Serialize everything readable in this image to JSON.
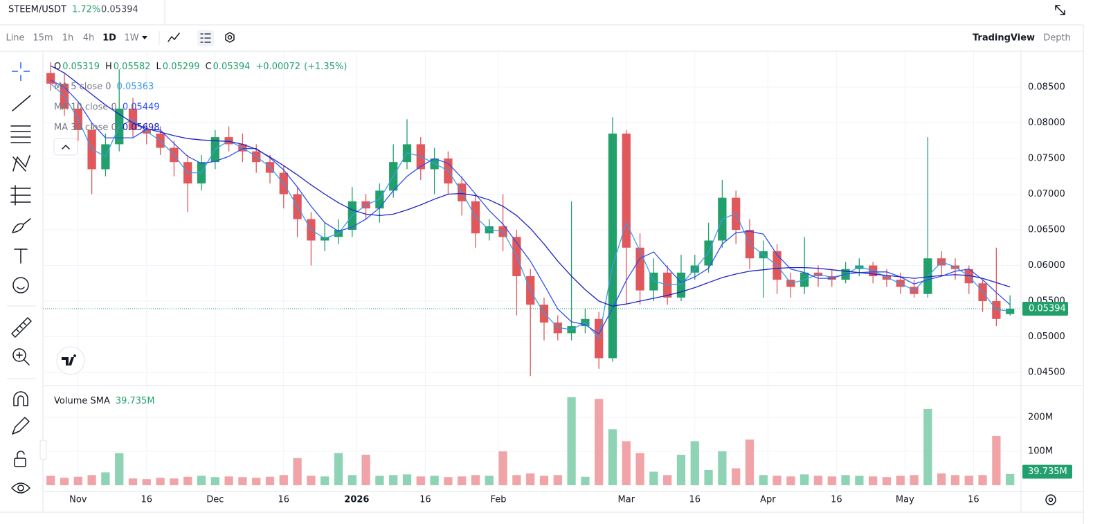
{
  "toolbar": {
    "intervals": [
      "Line",
      "15m",
      "1h",
      "4h",
      "1D",
      "1W"
    ],
    "views": [
      "TradingView",
      "Depth"
    ]
  },
  "chart_data": {
    "type": "candlestick",
    "symbol": "STEEM/USDT",
    "change": "1.72%",
    "legend": {
      "open": "O",
      "high": "H",
      "low": "L",
      "close": "C",
      "change_value": "+0.00072",
      "change_percent": "(+1.35%)"
    },
    "up_color": "#22a06b",
    "down_color": "#e0575c",
    "volume_up_color": "#8fd3b5",
    "volume_down_color": "#f1a4a7",
    "x": [
      -6,
      -3,
      0,
      3,
      6,
      9,
      12,
      15,
      18,
      21,
      24,
      27,
      30,
      33,
      36,
      39,
      42,
      45,
      48,
      51,
      54,
      57,
      60,
      63,
      66,
      69,
      72,
      75,
      78,
      81,
      84,
      87,
      90,
      93,
      96,
      99,
      102,
      105,
      108,
      111,
      114,
      117,
      120,
      123,
      126,
      129,
      132,
      135,
      138,
      141,
      144,
      147,
      150,
      153,
      156,
      159,
      162,
      165,
      168,
      171,
      174,
      177,
      180,
      183,
      186,
      189,
      192,
      195,
      198,
      201,
      204
    ],
    "open": [
      0.087,
      0.0855,
      0.082,
      0.079,
      0.0735,
      0.077,
      0.082,
      0.079,
      0.0785,
      0.0765,
      0.0745,
      0.0715,
      0.0745,
      0.078,
      0.077,
      0.076,
      0.0745,
      0.073,
      0.07,
      0.0665,
      0.0635,
      0.064,
      0.065,
      0.069,
      0.068,
      0.0705,
      0.0745,
      0.077,
      0.0735,
      0.075,
      0.0715,
      0.069,
      0.0645,
      0.0655,
      0.064,
      0.0585,
      0.0545,
      0.052,
      0.0505,
      0.0515,
      0.0525,
      0.047,
      0.0785,
      0.0625,
      0.0565,
      0.059,
      0.0555,
      0.059,
      0.06,
      0.0635,
      0.0695,
      0.065,
      0.061,
      0.062,
      0.058,
      0.057,
      0.059,
      0.0585,
      0.058,
      0.0595,
      0.06,
      0.0585,
      0.058,
      0.057,
      0.056,
      0.061,
      0.06,
      0.0595,
      0.0575,
      0.055,
      0.05319
    ],
    "high": [
      0.0885,
      0.087,
      0.083,
      0.08,
      0.0785,
      0.0875,
      0.0835,
      0.08,
      0.0795,
      0.0775,
      0.0755,
      0.0755,
      0.079,
      0.0795,
      0.0785,
      0.077,
      0.0755,
      0.074,
      0.071,
      0.0675,
      0.066,
      0.0665,
      0.071,
      0.07,
      0.0715,
      0.077,
      0.0805,
      0.078,
      0.0765,
      0.076,
      0.0725,
      0.07,
      0.0665,
      0.07,
      0.065,
      0.0595,
      0.0555,
      0.053,
      0.069,
      0.054,
      0.0535,
      0.0808,
      0.079,
      0.0645,
      0.061,
      0.06,
      0.0615,
      0.0615,
      0.066,
      0.072,
      0.0705,
      0.0665,
      0.0635,
      0.063,
      0.059,
      0.064,
      0.06,
      0.0595,
      0.0605,
      0.061,
      0.0605,
      0.0595,
      0.059,
      0.058,
      0.078,
      0.062,
      0.061,
      0.06,
      0.058,
      0.0625,
      0.05582
    ],
    "low": [
      0.0845,
      0.081,
      0.0775,
      0.07,
      0.0725,
      0.076,
      0.078,
      0.077,
      0.0755,
      0.0725,
      0.0675,
      0.0705,
      0.0735,
      0.076,
      0.0745,
      0.073,
      0.0715,
      0.068,
      0.064,
      0.06,
      0.062,
      0.063,
      0.064,
      0.0665,
      0.066,
      0.0695,
      0.0735,
      0.072,
      0.07,
      0.07,
      0.067,
      0.0625,
      0.0635,
      0.062,
      0.053,
      0.0445,
      0.0495,
      0.0495,
      0.0495,
      0.0505,
      0.0455,
      0.0465,
      0.0545,
      0.0545,
      0.055,
      0.0545,
      0.055,
      0.058,
      0.059,
      0.0625,
      0.063,
      0.0595,
      0.0555,
      0.056,
      0.0555,
      0.056,
      0.057,
      0.057,
      0.0575,
      0.0585,
      0.0575,
      0.057,
      0.056,
      0.0555,
      0.0555,
      0.0585,
      0.058,
      0.056,
      0.0535,
      0.0515,
      0.05299
    ],
    "close": [
      0.0855,
      0.082,
      0.079,
      0.0735,
      0.077,
      0.082,
      0.079,
      0.0785,
      0.0765,
      0.0745,
      0.0715,
      0.0745,
      0.078,
      0.077,
      0.076,
      0.0745,
      0.073,
      0.07,
      0.0665,
      0.0635,
      0.064,
      0.065,
      0.069,
      0.068,
      0.0705,
      0.0745,
      0.077,
      0.0735,
      0.075,
      0.0715,
      0.069,
      0.0645,
      0.0655,
      0.064,
      0.0585,
      0.0545,
      0.052,
      0.0505,
      0.0515,
      0.0525,
      0.047,
      0.0785,
      0.0625,
      0.0565,
      0.059,
      0.0555,
      0.059,
      0.06,
      0.0635,
      0.0695,
      0.065,
      0.061,
      0.062,
      0.058,
      0.057,
      0.059,
      0.0585,
      0.058,
      0.0595,
      0.06,
      0.0585,
      0.058,
      0.057,
      0.056,
      0.061,
      0.06,
      0.0595,
      0.0575,
      0.055,
      0.0525,
      0.05394
    ],
    "volume": [
      28,
      22,
      25,
      30,
      38,
      95,
      20,
      18,
      22,
      20,
      25,
      28,
      24,
      26,
      24,
      22,
      25,
      30,
      80,
      28,
      26,
      95,
      30,
      90,
      28,
      30,
      32,
      26,
      28,
      24,
      26,
      30,
      28,
      100,
      30,
      35,
      28,
      30,
      260,
      25,
      255,
      165,
      130,
      95,
      40,
      30,
      90,
      130,
      45,
      100,
      50,
      135,
      30,
      28,
      26,
      32,
      28,
      26,
      30,
      28,
      26,
      24,
      28,
      30,
      225,
      35,
      30,
      28,
      30,
      145,
      33
    ],
    "series": [
      {
        "name": "MA 5 close 0",
        "color": "#3d9be9",
        "values": [
          0.0855,
          0.0838,
          0.0805,
          0.0763,
          0.0753,
          0.0795,
          0.0805,
          0.0788,
          0.0775,
          0.0755,
          0.073,
          0.073,
          0.0763,
          0.0775,
          0.0765,
          0.0753,
          0.0738,
          0.0715,
          0.0683,
          0.065,
          0.0638,
          0.0645,
          0.067,
          0.0685,
          0.0693,
          0.0725,
          0.0758,
          0.0753,
          0.0743,
          0.0733,
          0.0703,
          0.0668,
          0.065,
          0.0648,
          0.0613,
          0.0565,
          0.0533,
          0.0513,
          0.051,
          0.052,
          0.0498,
          0.06,
          0.066,
          0.062,
          0.0578,
          0.0573,
          0.0573,
          0.0595,
          0.0618,
          0.0665,
          0.0673,
          0.063,
          0.0615,
          0.06,
          0.0575,
          0.058,
          0.0588,
          0.0583,
          0.0588,
          0.0598,
          0.0593,
          0.0583,
          0.0575,
          0.0565,
          0.0585,
          0.0605,
          0.0598,
          0.0585,
          0.0563,
          0.0538,
          0.05363
        ]
      },
      {
        "name": "MA 10 close 0",
        "color": "#2b4ff0",
        "values": [
          0.086,
          0.085,
          0.083,
          0.08,
          0.0779,
          0.0779,
          0.0779,
          0.0791,
          0.079,
          0.0771,
          0.0753,
          0.0743,
          0.0746,
          0.0753,
          0.0764,
          0.0764,
          0.0751,
          0.0734,
          0.071,
          0.0683,
          0.066,
          0.0648,
          0.0654,
          0.0665,
          0.0681,
          0.0705,
          0.0725,
          0.0739,
          0.075,
          0.0743,
          0.0723,
          0.07,
          0.0677,
          0.0658,
          0.0632,
          0.0606,
          0.0573,
          0.0539,
          0.0521,
          0.0517,
          0.0504,
          0.054,
          0.0579,
          0.061,
          0.0619,
          0.0597,
          0.0576,
          0.0584,
          0.0596,
          0.063,
          0.0646,
          0.0648,
          0.0644,
          0.0615,
          0.0595,
          0.059,
          0.0582,
          0.0582,
          0.0588,
          0.059,
          0.0591,
          0.0591,
          0.0584,
          0.0574,
          0.058,
          0.0585,
          0.0592,
          0.0595,
          0.058,
          0.0562,
          0.05449
        ]
      },
      {
        "name": "MA 30 close 0",
        "color": "#1a22c4",
        "values": [
          0.088,
          0.087,
          0.0855,
          0.084,
          0.0825,
          0.0812,
          0.08,
          0.0792,
          0.0787,
          0.0782,
          0.0778,
          0.0776,
          0.0775,
          0.0774,
          0.077,
          0.0763,
          0.0752,
          0.074,
          0.0727,
          0.0713,
          0.07,
          0.0688,
          0.0678,
          0.0672,
          0.067,
          0.0672,
          0.0678,
          0.0685,
          0.0693,
          0.07,
          0.0701,
          0.0698,
          0.0692,
          0.0683,
          0.067,
          0.0652,
          0.063,
          0.0606,
          0.0585,
          0.0566,
          0.055,
          0.0543,
          0.0546,
          0.055,
          0.0554,
          0.0558,
          0.0563,
          0.0569,
          0.0576,
          0.0583,
          0.0588,
          0.0592,
          0.0594,
          0.0596,
          0.0597,
          0.0597,
          0.0596,
          0.0594,
          0.0592,
          0.059,
          0.0588,
          0.0586,
          0.0584,
          0.0582,
          0.0584,
          0.0586,
          0.0587,
          0.0586,
          0.0582,
          0.0576,
          0.05698
        ]
      }
    ],
    "volume_name": "Volume SMA",
    "volume_sma": {
      "value": 39.735,
      "label": "39.735M"
    },
    "xlim": [
      -7.7,
      206.4
    ],
    "xticks": [
      {
        "value": 0,
        "label": "Nov"
      },
      {
        "value": 15,
        "label": "16"
      },
      {
        "value": 30,
        "label": "Dec"
      },
      {
        "value": 45,
        "label": "16"
      },
      {
        "value": 61,
        "label": "2026"
      },
      {
        "value": 76,
        "label": "16"
      },
      {
        "value": 92,
        "label": "Feb"
      },
      {
        "value": 120,
        "label": "Mar"
      },
      {
        "value": 135,
        "label": "16"
      },
      {
        "value": 151,
        "label": "Apr"
      },
      {
        "value": 166,
        "label": "16"
      },
      {
        "value": 181,
        "label": "May"
      },
      {
        "value": 196,
        "label": "16"
      }
    ],
    "ylim": [
      0.04316,
      0.08995
    ],
    "yticks": [
      {
        "value": 0.085,
        "label": "0.08500"
      },
      {
        "value": 0.08,
        "label": "0.08000"
      },
      {
        "value": 0.075,
        "label": "0.07500"
      },
      {
        "value": 0.07,
        "label": "0.07000"
      },
      {
        "value": 0.065,
        "label": "0.06500"
      },
      {
        "value": 0.06,
        "label": "0.06000"
      },
      {
        "value": 0.055,
        "label": "0.05500"
      },
      {
        "value": 0.05,
        "label": "0.05000"
      },
      {
        "value": 0.045,
        "label": "0.04500"
      }
    ],
    "volume_ylim": [
      0,
      284
    ],
    "volume_yticks": [
      {
        "value": 200,
        "label": "200M"
      },
      {
        "value": 100,
        "label": "100M"
      }
    ],
    "grid": true
  }
}
